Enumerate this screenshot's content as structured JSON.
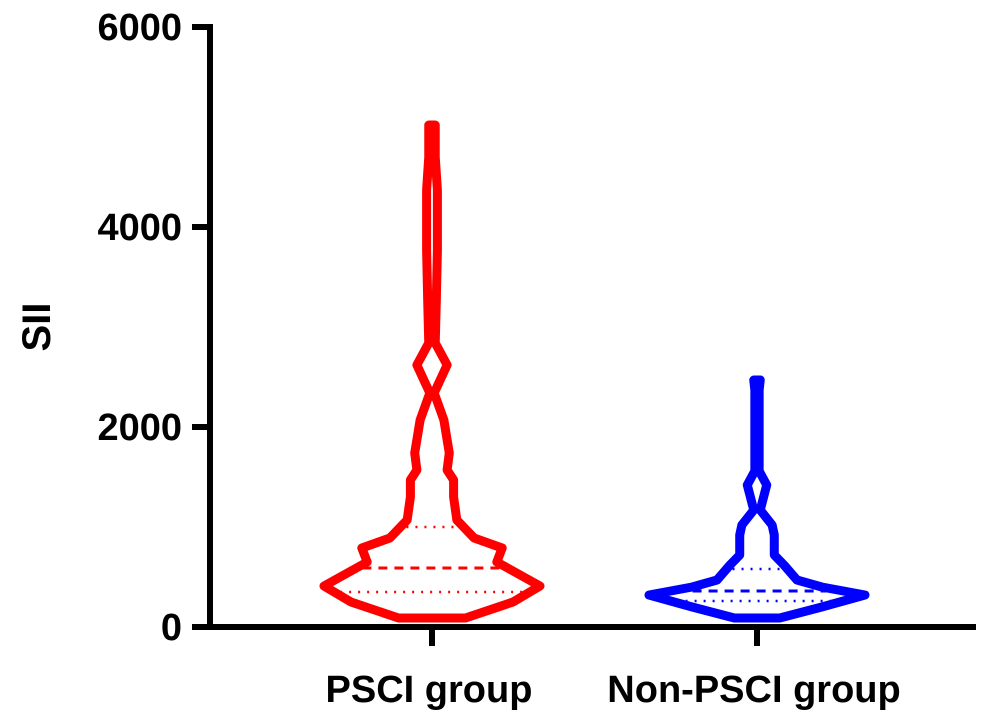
{
  "chart_data": {
    "type": "violin",
    "title": "",
    "xlabel": "",
    "ylabel": "SII",
    "ylim": [
      0,
      6000
    ],
    "yticks": [
      "0",
      "2000",
      "4000",
      "6000"
    ],
    "grid": false,
    "legend": "none",
    "categories": [
      "PSCI group",
      "Non-PSCI group"
    ],
    "series": [
      {
        "category": "PSCI group",
        "color": "#ff0000",
        "min": 90,
        "max": 5020,
        "q1": 350,
        "median": 590,
        "q3": 1000,
        "density_profile": [
          [
            90,
            0.31
          ],
          [
            250,
            0.75
          ],
          [
            410,
            1.0
          ],
          [
            560,
            0.75
          ],
          [
            650,
            0.6
          ],
          [
            790,
            0.65
          ],
          [
            890,
            0.39
          ],
          [
            1070,
            0.23
          ],
          [
            1300,
            0.2
          ],
          [
            1470,
            0.2
          ],
          [
            1570,
            0.14
          ],
          [
            1740,
            0.16
          ],
          [
            2070,
            0.11
          ],
          [
            2340,
            0.02
          ],
          [
            2620,
            0.14
          ],
          [
            2840,
            0.03
          ],
          [
            3270,
            0.04
          ],
          [
            3770,
            0.05
          ],
          [
            4370,
            0.05
          ],
          [
            4700,
            0.03
          ],
          [
            5020,
            0.03
          ]
        ]
      },
      {
        "category": "Non-PSCI group",
        "color": "#0000ff",
        "min": 90,
        "max": 2470,
        "q1": 260,
        "median": 360,
        "q3": 580,
        "density_profile": [
          [
            90,
            0.21
          ],
          [
            200,
            0.6
          ],
          [
            320,
            1.0
          ],
          [
            400,
            0.6
          ],
          [
            470,
            0.37
          ],
          [
            620,
            0.25
          ],
          [
            720,
            0.16
          ],
          [
            920,
            0.16
          ],
          [
            1020,
            0.14
          ],
          [
            1170,
            0.03
          ],
          [
            1420,
            0.09
          ],
          [
            1560,
            0.02
          ],
          [
            2370,
            0.02
          ],
          [
            2470,
            0.03
          ]
        ]
      }
    ]
  }
}
